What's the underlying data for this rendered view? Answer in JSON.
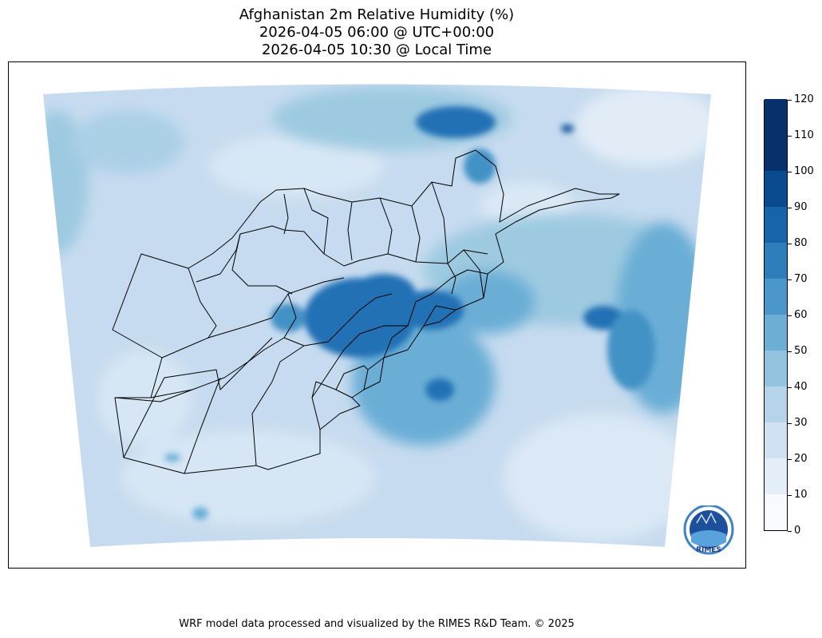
{
  "title": {
    "line1": "Afghanistan 2m Relative Humidity (%)",
    "line2": "2026-04-05 06:00 @ UTC+00:00",
    "line3": "2026-04-05 10:30 @ Local Time"
  },
  "colorbar": {
    "levels": [
      0,
      10,
      20,
      30,
      40,
      50,
      60,
      70,
      80,
      90,
      100,
      110,
      120
    ],
    "tick_labels": [
      "0",
      "10",
      "20",
      "30",
      "40",
      "50",
      "60",
      "70",
      "80",
      "90",
      "100",
      "110",
      "120"
    ],
    "colors": [
      "#f7fbff",
      "#e3eef9",
      "#cfe1f2",
      "#b5d4e9",
      "#93c3df",
      "#6daed5",
      "#4b97c9",
      "#2f7ebc",
      "#1864aa",
      "#0a4a90",
      "#08306b",
      "#08306b"
    ]
  },
  "logo": {
    "text": "RIMES"
  },
  "footer": "WRF model data processed and visualized by the RIMES R&D Team. © 2025"
}
